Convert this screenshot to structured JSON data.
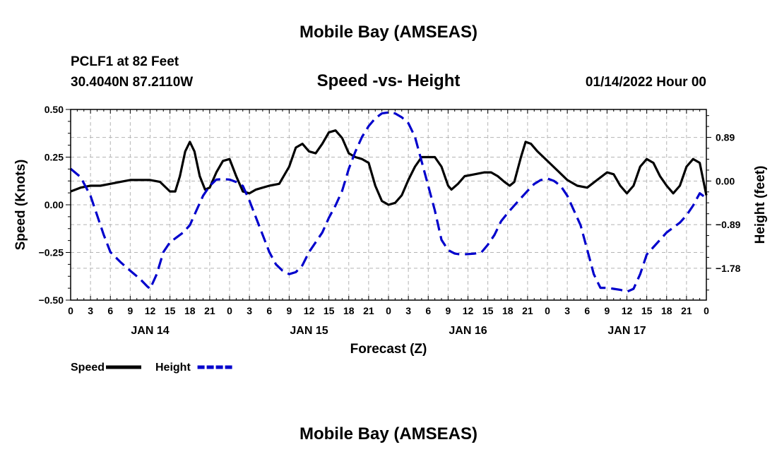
{
  "page": {
    "title": "Mobile Bay (AMSEAS)",
    "station": "PCLF1 at 82 Feet",
    "coords": "30.4040N  87.2110W",
    "chart_title": "Speed -vs- Height",
    "datetime": "01/14/2022 Hour 00",
    "bottom_title": "Mobile Bay (AMSEAS)"
  },
  "chart_data": {
    "type": "line",
    "xlabel": "Forecast (Z)",
    "ylabel_left": "Speed (Knots)",
    "ylabel_right": "Height (feet)",
    "x_hours": [
      0,
      96
    ],
    "x_tick_labels": [
      "0",
      "3",
      "6",
      "9",
      "12",
      "15",
      "18",
      "21",
      "0",
      "3",
      "6",
      "9",
      "12",
      "15",
      "18",
      "21",
      "0",
      "3",
      "6",
      "9",
      "12",
      "15",
      "18",
      "21",
      "0",
      "3",
      "6",
      "9",
      "12",
      "15",
      "18",
      "21",
      "0"
    ],
    "day_labels": [
      {
        "label": "JAN 14",
        "hour": 12
      },
      {
        "label": "JAN 15",
        "hour": 36
      },
      {
        "label": "JAN 16",
        "hour": 60
      },
      {
        "label": "JAN 17",
        "hour": 84
      }
    ],
    "ylim_left": [
      -0.5,
      0.5
    ],
    "yticks_left": [
      "0.50",
      "0.25",
      "0.00",
      "−0.25",
      "−0.50"
    ],
    "yticks_left_values": [
      0.5,
      0.25,
      0,
      -0.25,
      -0.5
    ],
    "ylim_right": [
      -2.43,
      1.46
    ],
    "yticks_right": [
      "0.89",
      "0.00",
      "−0.89",
      "−1.78"
    ],
    "yticks_right_values": [
      0.89,
      0,
      -0.89,
      -1.78
    ],
    "grid": true,
    "legend_position": "bottom-left",
    "series": [
      {
        "name": "Speed",
        "color": "#000000",
        "dash": "solid",
        "axis": "left",
        "points": [
          [
            0,
            0.07
          ],
          [
            1.5,
            0.09
          ],
          [
            3,
            0.1
          ],
          [
            4.5,
            0.1
          ],
          [
            6,
            0.11
          ],
          [
            7.5,
            0.12
          ],
          [
            9,
            0.13
          ],
          [
            10.5,
            0.13
          ],
          [
            12,
            0.13
          ],
          [
            13.5,
            0.12
          ],
          [
            15,
            0.07
          ],
          [
            15.8,
            0.07
          ],
          [
            16.5,
            0.15
          ],
          [
            17.3,
            0.28
          ],
          [
            18,
            0.33
          ],
          [
            18.7,
            0.28
          ],
          [
            19.5,
            0.15
          ],
          [
            20.3,
            0.08
          ],
          [
            21,
            0.09
          ],
          [
            22,
            0.17
          ],
          [
            23,
            0.23
          ],
          [
            24,
            0.24
          ],
          [
            25,
            0.15
          ],
          [
            26,
            0.07
          ],
          [
            27,
            0.06
          ],
          [
            28,
            0.08
          ],
          [
            29,
            0.09
          ],
          [
            30,
            0.1
          ],
          [
            31.5,
            0.11
          ],
          [
            33,
            0.2
          ],
          [
            34,
            0.3
          ],
          [
            35,
            0.32
          ],
          [
            36,
            0.28
          ],
          [
            37,
            0.27
          ],
          [
            38,
            0.32
          ],
          [
            39,
            0.38
          ],
          [
            40,
            0.39
          ],
          [
            41,
            0.35
          ],
          [
            42,
            0.27
          ],
          [
            43,
            0.25
          ],
          [
            44,
            0.24
          ],
          [
            45,
            0.22
          ],
          [
            46,
            0.1
          ],
          [
            47,
            0.02
          ],
          [
            48,
            0.0
          ],
          [
            49,
            0.01
          ],
          [
            50,
            0.05
          ],
          [
            51,
            0.13
          ],
          [
            52,
            0.2
          ],
          [
            53,
            0.25
          ],
          [
            54,
            0.25
          ],
          [
            55,
            0.25
          ],
          [
            56,
            0.2
          ],
          [
            57,
            0.1
          ],
          [
            57.5,
            0.08
          ],
          [
            58.5,
            0.11
          ],
          [
            59.5,
            0.15
          ],
          [
            61,
            0.16
          ],
          [
            62.5,
            0.17
          ],
          [
            63.5,
            0.17
          ],
          [
            64.5,
            0.15
          ],
          [
            65.5,
            0.12
          ],
          [
            66.3,
            0.1
          ],
          [
            67,
            0.12
          ],
          [
            68,
            0.25
          ],
          [
            68.7,
            0.33
          ],
          [
            69.5,
            0.32
          ],
          [
            70.5,
            0.28
          ],
          [
            72,
            0.23
          ],
          [
            73.5,
            0.18
          ],
          [
            75,
            0.13
          ],
          [
            76.5,
            0.1
          ],
          [
            78,
            0.09
          ],
          [
            79.5,
            0.13
          ],
          [
            81,
            0.17
          ],
          [
            82,
            0.16
          ],
          [
            83,
            0.1
          ],
          [
            84,
            0.06
          ],
          [
            85,
            0.1
          ],
          [
            86,
            0.2
          ],
          [
            87,
            0.24
          ],
          [
            88,
            0.22
          ],
          [
            89,
            0.15
          ],
          [
            90,
            0.1
          ],
          [
            91,
            0.06
          ],
          [
            92,
            0.1
          ],
          [
            93,
            0.2
          ],
          [
            94,
            0.24
          ],
          [
            95,
            0.22
          ],
          [
            96,
            0.05
          ]
        ]
      },
      {
        "name": "Height",
        "color": "#0000cc",
        "dash": "dashed",
        "axis": "right",
        "points": [
          [
            0,
            0.25
          ],
          [
            1.5,
            0.08
          ],
          [
            3,
            -0.3
          ],
          [
            4,
            -0.7
          ],
          [
            5,
            -1.1
          ],
          [
            6,
            -1.45
          ],
          [
            7.5,
            -1.65
          ],
          [
            9,
            -1.83
          ],
          [
            10.5,
            -2.0
          ],
          [
            11.5,
            -2.14
          ],
          [
            12,
            -2.2
          ],
          [
            13,
            -1.9
          ],
          [
            14,
            -1.45
          ],
          [
            15,
            -1.25
          ],
          [
            16,
            -1.15
          ],
          [
            17,
            -1.05
          ],
          [
            18,
            -0.9
          ],
          [
            19,
            -0.6
          ],
          [
            20,
            -0.3
          ],
          [
            21,
            -0.1
          ],
          [
            22,
            0.03
          ],
          [
            23,
            0.04
          ],
          [
            24,
            0.03
          ],
          [
            25,
            -0.02
          ],
          [
            26,
            -0.1
          ],
          [
            27,
            -0.4
          ],
          [
            28,
            -0.75
          ],
          [
            29,
            -1.1
          ],
          [
            30,
            -1.45
          ],
          [
            31,
            -1.7
          ],
          [
            32,
            -1.83
          ],
          [
            33,
            -1.9
          ],
          [
            34,
            -1.86
          ],
          [
            35,
            -1.72
          ],
          [
            36,
            -1.45
          ],
          [
            37,
            -1.25
          ],
          [
            38,
            -1.05
          ],
          [
            39,
            -0.75
          ],
          [
            40,
            -0.5
          ],
          [
            41,
            -0.2
          ],
          [
            42,
            0.25
          ],
          [
            43,
            0.6
          ],
          [
            44,
            0.9
          ],
          [
            45,
            1.12
          ],
          [
            46,
            1.28
          ],
          [
            47,
            1.38
          ],
          [
            48,
            1.4
          ],
          [
            49,
            1.38
          ],
          [
            50,
            1.3
          ],
          [
            51,
            1.18
          ],
          [
            52,
            0.9
          ],
          [
            53,
            0.4
          ],
          [
            54,
            -0.1
          ],
          [
            55,
            -0.6
          ],
          [
            56,
            -1.2
          ],
          [
            57,
            -1.41
          ],
          [
            58,
            -1.48
          ],
          [
            59,
            -1.5
          ],
          [
            60,
            -1.49
          ],
          [
            61,
            -1.48
          ],
          [
            62,
            -1.46
          ],
          [
            63,
            -1.3
          ],
          [
            64,
            -1.1
          ],
          [
            65,
            -0.82
          ],
          [
            66,
            -0.65
          ],
          [
            67,
            -0.5
          ],
          [
            68,
            -0.35
          ],
          [
            69,
            -0.2
          ],
          [
            70,
            -0.06
          ],
          [
            71,
            0.02
          ],
          [
            72,
            0.05
          ],
          [
            73,
            0.0
          ],
          [
            74,
            -0.1
          ],
          [
            75,
            -0.3
          ],
          [
            76,
            -0.6
          ],
          [
            77,
            -0.9
          ],
          [
            78,
            -1.4
          ],
          [
            79,
            -1.9
          ],
          [
            80,
            -2.18
          ],
          [
            81,
            -2.18
          ],
          [
            82,
            -2.2
          ],
          [
            83,
            -2.22
          ],
          [
            84,
            -2.26
          ],
          [
            85,
            -2.2
          ],
          [
            86,
            -1.9
          ],
          [
            87,
            -1.5
          ],
          [
            88,
            -1.35
          ],
          [
            89,
            -1.2
          ],
          [
            90,
            -1.05
          ],
          [
            91,
            -0.95
          ],
          [
            92,
            -0.85
          ],
          [
            93,
            -0.7
          ],
          [
            94,
            -0.5
          ],
          [
            95,
            -0.25
          ],
          [
            96,
            -0.35
          ]
        ]
      }
    ]
  }
}
